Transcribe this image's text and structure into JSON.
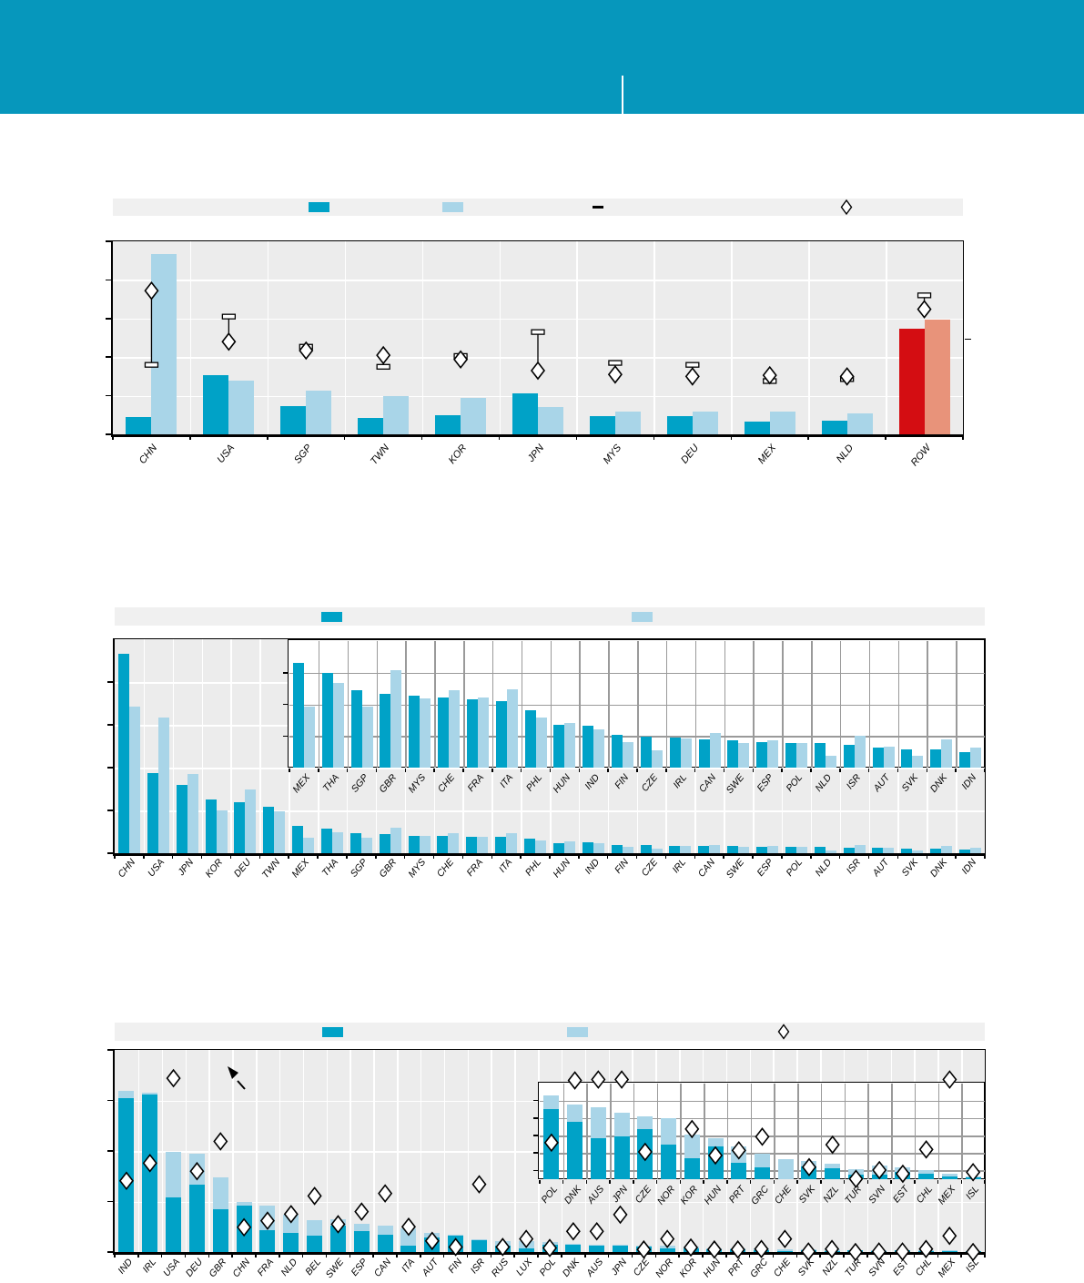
{
  "page": {
    "header_color": "#0697BC",
    "background": "#ffffff"
  },
  "colors": {
    "dark_bar": "#00A2C7",
    "light_bar": "#A9D5E8",
    "row_dark": "#D40D12",
    "row_light": "#E8937A",
    "plot_bg": "#ECECEC",
    "legend_bg": "#F0F0F0",
    "white_grid": "#FFFFFF",
    "inset_grid": "#9A9A9A",
    "marker_fill": "#FFFFFF",
    "marker_stroke": "#000000"
  },
  "header": {
    "divider": true
  },
  "chart_data": [
    {
      "id": "panel1",
      "type": "bar",
      "layout_hint": "grouped pairs, gray plot, white gridlines, diamond markers with whisker caps",
      "title": "",
      "xlabel": "",
      "ylabel": "",
      "ylim": [
        0,
        5
      ],
      "gridlines": [
        1,
        2,
        3,
        4
      ],
      "left_ticks": [
        0,
        1,
        2,
        3,
        4,
        5
      ],
      "right_ticks": [
        2.48
      ],
      "categories": [
        "CHN",
        "USA",
        "SGP",
        "TWN",
        "KOR",
        "JPN",
        "MYS",
        "DEU",
        "MEX",
        "NLD",
        "ROW"
      ],
      "series": [
        {
          "name": "dark",
          "values": [
            0.45,
            1.53,
            0.73,
            0.43,
            0.5,
            1.06,
            0.48,
            0.46,
            0.32,
            0.35,
            2.73
          ]
        },
        {
          "name": "light",
          "values": [
            4.67,
            1.38,
            1.13,
            1.0,
            0.95,
            0.71,
            0.59,
            0.6,
            0.58,
            0.54,
            2.98
          ]
        }
      ],
      "markers": {
        "diamond": [
          3.72,
          2.4,
          2.17,
          2.05,
          1.94,
          1.65,
          1.55,
          1.5,
          1.53,
          1.5,
          3.24
        ],
        "whisker_end": [
          1.8,
          3.05,
          2.27,
          1.75,
          2.03,
          2.65,
          1.85,
          1.8,
          1.38,
          1.43,
          3.6
        ]
      },
      "highlight": {
        "category": "ROW",
        "dark_color": "#D40D12",
        "light_color": "#E8937A"
      },
      "legend": [
        {
          "kind": "swatch",
          "color": "#00A2C7",
          "label": ""
        },
        {
          "kind": "swatch",
          "color": "#A9D5E8",
          "label": ""
        },
        {
          "kind": "dash",
          "color": "#000000",
          "label": ""
        },
        {
          "kind": "diamond",
          "color": "#FFFFFF",
          "label": ""
        }
      ]
    },
    {
      "id": "panel2",
      "type": "bar",
      "layout_hint": "grouped pairs, gray plot + white inset magnifying the small countries",
      "title": "",
      "xlabel": "",
      "ylabel": "",
      "ylim": [
        0,
        5
      ],
      "gridlines": [
        1,
        2,
        3,
        4
      ],
      "left_ticks": [
        0,
        1,
        2,
        3,
        4
      ],
      "categories": [
        "CHN",
        "USA",
        "JPN",
        "KOR",
        "DEU",
        "TWN",
        "MEX",
        "THA",
        "SGP",
        "GBR",
        "MYS",
        "CHE",
        "FRA",
        "ITA",
        "PHL",
        "HUN",
        "IND",
        "FIN",
        "CZE",
        "IRL",
        "CAN",
        "SWE",
        "ESP",
        "POL",
        "NLD",
        "ISR",
        "AUT",
        "SVK",
        "DNK",
        "IDN"
      ],
      "series": [
        {
          "name": "dark",
          "values": [
            4.67,
            1.88,
            1.6,
            1.26,
            1.2,
            1.08,
            0.64,
            0.57,
            0.46,
            0.44,
            0.41,
            0.41,
            0.39,
            0.38,
            0.33,
            0.24,
            0.26,
            0.2,
            0.19,
            0.18,
            0.17,
            0.16,
            0.15,
            0.15,
            0.15,
            0.13,
            0.12,
            0.11,
            0.11,
            0.09
          ]
        },
        {
          "name": "light",
          "values": [
            3.43,
            3.16,
            1.86,
            1.01,
            1.48,
            0.98,
            0.36,
            0.5,
            0.36,
            0.59,
            0.41,
            0.46,
            0.39,
            0.46,
            0.3,
            0.27,
            0.23,
            0.15,
            0.1,
            0.17,
            0.2,
            0.15,
            0.16,
            0.15,
            0.07,
            0.19,
            0.12,
            0.07,
            0.17,
            0.12
          ]
        }
      ],
      "legend": [
        {
          "kind": "swatch",
          "color": "#00A2C7",
          "label": ""
        },
        {
          "kind": "swatch",
          "color": "#A9D5E8",
          "label": ""
        }
      ],
      "inset": {
        "ylim": [
          0,
          4
        ],
        "gridlines": [
          1,
          2,
          3
        ],
        "left_ticks": [
          1,
          2,
          3
        ],
        "categories": [
          "MEX",
          "THA",
          "SGP",
          "GBR",
          "MYS",
          "CHE",
          "FRA",
          "ITA",
          "PHL",
          "HUN",
          "IND",
          "FIN",
          "CZE",
          "IRL",
          "CAN",
          "SWE",
          "ESP",
          "POL",
          "NLD",
          "ISR",
          "AUT",
          "SVK",
          "DNK",
          "IDN"
        ],
        "series": [
          {
            "name": "dark",
            "values": [
              3.31,
              2.98,
              2.45,
              2.32,
              2.27,
              2.23,
              2.17,
              2.1,
              1.8,
              1.34,
              1.31,
              1.05,
              0.98,
              0.95,
              0.9,
              0.87,
              0.81,
              0.78,
              0.79,
              0.71,
              0.62,
              0.57,
              0.58,
              0.49
            ]
          },
          {
            "name": "light",
            "values": [
              1.94,
              2.69,
              1.92,
              3.09,
              2.19,
              2.44,
              2.23,
              2.48,
              1.59,
              1.41,
              1.21,
              0.81,
              0.55,
              0.92,
              1.08,
              0.77,
              0.86,
              0.79,
              0.37,
              1.0,
              0.65,
              0.38,
              0.88,
              0.63
            ]
          }
        ]
      }
    },
    {
      "id": "panel3",
      "type": "bar",
      "layout_hint": "stacked bars + diamond markers, gray plot + white inset, arrow annotation",
      "title": "",
      "xlabel": "",
      "ylabel": "",
      "ylim": [
        0,
        4
      ],
      "gridlines": [
        1,
        2,
        3
      ],
      "left_ticks": [
        0,
        1,
        2,
        3,
        4
      ],
      "categories": [
        "IND",
        "IRL",
        "USA",
        "DEU",
        "GBR",
        "CHN",
        "FRA",
        "NLD",
        "BEL",
        "SWE",
        "ESP",
        "CAN",
        "ITA",
        "AUT",
        "FIN",
        "ISR",
        "RUS",
        "LUX",
        "POL",
        "DNK",
        "AUS",
        "JPN",
        "CZE",
        "NOR",
        "KOR",
        "HUN",
        "PRT",
        "GRC",
        "CHE",
        "SVK",
        "NZL",
        "TUR",
        "SVN",
        "EST",
        "CHL",
        "MEX",
        "ISL"
      ],
      "series": [
        {
          "name": "dark_stack",
          "values": [
            3.05,
            3.11,
            1.08,
            1.33,
            0.84,
            0.91,
            0.43,
            0.38,
            0.32,
            0.53,
            0.42,
            0.35,
            0.12,
            0.28,
            0.32,
            0.24,
            0.13,
            0.07,
            0.15,
            0.15,
            0.12,
            0.12,
            0.1,
            0.08,
            0.07,
            0.06,
            0.05,
            0.04,
            0.01,
            0.03,
            0.02,
            0.03,
            0.02,
            0.03,
            0.02,
            0.02,
            0.01
          ]
        },
        {
          "name": "light_stack",
          "values": [
            0.14,
            0.05,
            0.91,
            0.62,
            0.64,
            0.09,
            0.49,
            0.36,
            0.31,
            0.11,
            0.14,
            0.17,
            0.34,
            0.09,
            0.02,
            0.02,
            0.09,
            0.14,
            0.04,
            0.02,
            0.03,
            0.03,
            0.02,
            0.04,
            0.03,
            0.02,
            0.03,
            0.03,
            0.05,
            0.02,
            0.03,
            0.01,
            0.02,
            0.01,
            0.01,
            0.01,
            0.01
          ]
        }
      ],
      "markers": {
        "diamond": [
          1.41,
          1.76,
          3.44,
          1.6,
          2.19,
          0.49,
          0.62,
          0.75,
          1.11,
          0.55,
          0.8,
          1.16,
          0.5,
          0.22,
          0.1,
          1.34,
          0.1,
          0.26,
          0.08,
          0.41,
          0.41,
          0.74,
          0.05,
          0.26,
          0.09,
          0.05,
          0.05,
          0.06,
          0.26,
          0.01,
          0.06,
          0.0,
          0.01,
          0.01,
          0.06,
          0.32,
          0.0
        ]
      },
      "annotation": {
        "type": "arrow",
        "from": [
          269,
          1196
        ],
        "to": [
          253,
          1174
        ]
      },
      "legend": [
        {
          "kind": "swatch",
          "color": "#00A2C7",
          "label": ""
        },
        {
          "kind": "swatch",
          "color": "#A9D5E8",
          "label": ""
        },
        {
          "kind": "diamond",
          "color": "#FFFFFF",
          "label": ""
        }
      ],
      "inset": {
        "ylim": [
          0,
          5.5
        ],
        "gridlines": [
          0.5,
          1.5,
          2.5,
          3.5,
          4.5
        ],
        "left_ticks": [
          0.5,
          1.5,
          2.5,
          3.5,
          4.5
        ],
        "categories": [
          "POL",
          "DNK",
          "AUS",
          "JPN",
          "CZE",
          "NOR",
          "KOR",
          "HUN",
          "PRT",
          "GRC",
          "CHE",
          "SVK",
          "NZL",
          "TUR",
          "SVN",
          "EST",
          "CHL",
          "MEX",
          "ISL"
        ],
        "series": [
          {
            "name": "dark_stack",
            "values": [
              4.0,
              3.3,
              2.35,
              2.47,
              2.87,
              1.97,
              1.22,
              1.88,
              0.96,
              0.7,
              0.0,
              0.73,
              0.61,
              0.26,
              0.26,
              0.4,
              0.3,
              0.17,
              0.09
            ]
          },
          {
            "name": "light_stack",
            "values": [
              0.81,
              0.96,
              1.79,
              1.35,
              0.73,
              1.54,
              1.35,
              0.47,
              0.92,
              0.74,
              1.13,
              0.31,
              0.26,
              0.31,
              0.52,
              0.3,
              0.22,
              0.13,
              0.08
            ]
          }
        ],
        "markers": {
          "diamond": [
            2.09,
            5.65,
            5.7,
            5.7,
            1.56,
            null,
            2.87,
            1.36,
            1.65,
            2.43,
            null,
            0.69,
            1.97,
            0.02,
            0.52,
            0.31,
            1.7,
            5.7,
            0.4
          ]
        }
      }
    }
  ]
}
